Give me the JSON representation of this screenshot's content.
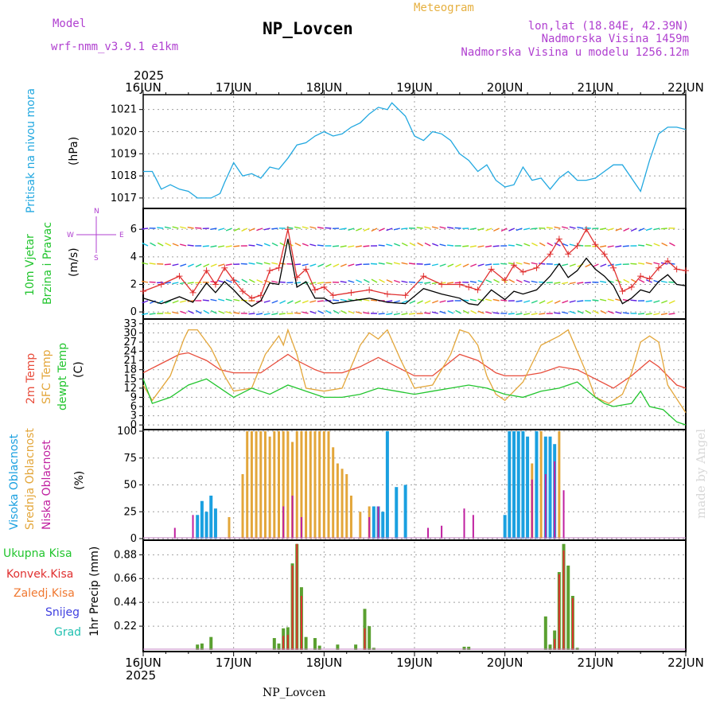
{
  "header": {
    "model_label": "Model",
    "model_name": "wrf-nmm_v3.9.1 e1km",
    "station": "NP_Lovcen",
    "meteogram": "Meteogram",
    "lonlat": "lon,lat (18.84E, 42.39N)",
    "altitude": "Nadmorska Visina 1459m",
    "model_altitude": "Nadmorska Visina u modelu 1256.12m",
    "footer_station": "NP_Lovcen",
    "credit": "made by Angel"
  },
  "colors": {
    "pressure": "#22a8e0",
    "wind_speed": "#000000",
    "wind_gust": "#e03030",
    "temp2m": "#e84d3c",
    "sfc": "#e3a63a",
    "dewpt": "#22c52e",
    "high_cloud": "#1aa0e0",
    "mid_cloud": "#e3a63a",
    "low_cloud": "#c020a0",
    "total_precip": "#5aa030",
    "conv_precip": "#e03030",
    "snow": "#4040e0",
    "graupel": "#20c0b0",
    "model_text": "#b040d0",
    "meteogram_text": "#e6b040"
  },
  "time_axis": {
    "year": "2025",
    "days": [
      "16JUN",
      "17JUN",
      "18JUN",
      "19JUN",
      "20JUN",
      "21JUN",
      "22JUN"
    ]
  },
  "chart_data": [
    {
      "type": "line",
      "panel": "pressure",
      "labels": [
        "Pritisak na nivou mora",
        "(hPa)"
      ],
      "yticks": [
        1017,
        1018,
        1019,
        1020,
        1021
      ],
      "ylim": [
        1016.6,
        1021.6
      ],
      "grid": true,
      "series": [
        {
          "x": [
            0,
            0.1,
            0.15,
            0.2,
            0.3,
            0.4,
            0.5,
            0.6,
            0.75,
            0.85,
            0.9,
            1.0,
            1.1,
            1.2,
            1.3,
            1.4,
            1.5,
            1.6,
            1.7,
            1.8,
            1.9,
            2.0,
            2.1,
            2.2,
            2.3,
            2.4,
            2.5,
            2.6,
            2.7,
            2.75,
            2.8,
            2.9,
            3.0,
            3.1,
            3.2,
            3.3,
            3.4,
            3.5,
            3.6,
            3.7,
            3.8,
            3.9,
            4.0,
            4.1,
            4.2,
            4.3,
            4.4,
            4.5,
            4.6,
            4.7,
            4.8,
            4.9,
            5.0,
            5.1,
            5.2,
            5.3,
            5.4,
            5.5,
            5.6,
            5.7,
            5.8,
            5.9,
            6.0
          ],
          "y": [
            1018.2,
            1018.2,
            1017.8,
            1017.4,
            1017.6,
            1017.4,
            1017.3,
            1017.0,
            1017.0,
            1017.2,
            1017.7,
            1018.6,
            1018.0,
            1018.1,
            1017.9,
            1018.4,
            1018.3,
            1018.8,
            1019.4,
            1019.5,
            1019.8,
            1020.0,
            1019.8,
            1019.9,
            1020.2,
            1020.4,
            1020.8,
            1021.1,
            1021.0,
            1021.3,
            1021.1,
            1020.7,
            1019.8,
            1019.6,
            1020.0,
            1019.9,
            1019.6,
            1019.0,
            1018.7,
            1018.2,
            1018.5,
            1017.8,
            1017.5,
            1017.6,
            1018.4,
            1017.8,
            1017.9,
            1017.4,
            1017.9,
            1018.2,
            1017.8,
            1017.8,
            1017.9,
            1018.2,
            1018.5,
            1018.5,
            1017.9,
            1017.3,
            1018.7,
            1019.9,
            1020.2,
            1020.2,
            1020.1
          ]
        }
      ]
    },
    {
      "type": "line",
      "panel": "wind",
      "labels": [
        "10m Vjetar",
        "Brzina i Pravac",
        "(m/s)"
      ],
      "compass": [
        "N",
        "W",
        "E",
        "S"
      ],
      "yticks": [
        0,
        2,
        4,
        6
      ],
      "ylim": [
        -0.4,
        7.4
      ],
      "grid": true,
      "series": [
        {
          "name": "speed",
          "x": [
            0,
            0.2,
            0.4,
            0.55,
            0.7,
            0.8,
            0.9,
            1.0,
            1.1,
            1.2,
            1.3,
            1.4,
            1.5,
            1.6,
            1.7,
            1.8,
            1.9,
            2.0,
            2.1,
            2.3,
            2.5,
            2.7,
            2.9,
            3.1,
            3.3,
            3.5,
            3.6,
            3.7,
            3.85,
            4.0,
            4.1,
            4.2,
            4.35,
            4.5,
            4.6,
            4.7,
            4.8,
            4.9,
            5.0,
            5.1,
            5.2,
            5.3,
            5.4,
            5.5,
            5.6,
            5.7,
            5.8,
            5.9,
            6.0
          ],
          "y": [
            1.0,
            0.6,
            1.1,
            0.7,
            2.1,
            1.4,
            2.2,
            1.6,
            0.9,
            0.4,
            0.8,
            2.1,
            2.0,
            5.3,
            1.8,
            2.2,
            1.0,
            1.0,
            0.6,
            0.8,
            1.0,
            0.7,
            0.6,
            1.7,
            1.3,
            1.0,
            0.6,
            0.5,
            1.6,
            0.9,
            1.5,
            1.3,
            1.6,
            2.6,
            3.5,
            2.5,
            3.0,
            3.9,
            3.1,
            2.6,
            1.9,
            0.6,
            1.0,
            1.6,
            1.4,
            2.2,
            2.7,
            2.0,
            1.9
          ]
        },
        {
          "name": "gust",
          "x": [
            0,
            0.2,
            0.4,
            0.55,
            0.7,
            0.8,
            0.9,
            1.0,
            1.1,
            1.2,
            1.3,
            1.4,
            1.5,
            1.6,
            1.7,
            1.8,
            1.9,
            2.0,
            2.1,
            2.3,
            2.5,
            2.7,
            2.9,
            3.1,
            3.3,
            3.5,
            3.6,
            3.7,
            3.85,
            4.0,
            4.1,
            4.2,
            4.35,
            4.5,
            4.6,
            4.7,
            4.8,
            4.9,
            5.0,
            5.1,
            5.2,
            5.3,
            5.4,
            5.5,
            5.6,
            5.7,
            5.8,
            5.9,
            6.0
          ],
          "y": [
            1.5,
            2.0,
            2.6,
            1.4,
            3.0,
            2.0,
            3.2,
            2.3,
            1.5,
            1.0,
            1.2,
            3.0,
            3.2,
            6.0,
            2.5,
            3.1,
            1.6,
            1.8,
            1.2,
            1.4,
            1.6,
            1.3,
            1.2,
            2.6,
            2.0,
            2.0,
            1.8,
            1.6,
            3.1,
            2.3,
            3.4,
            2.9,
            3.2,
            4.2,
            5.3,
            4.2,
            4.8,
            6.0,
            4.9,
            4.2,
            3.2,
            1.5,
            1.8,
            2.6,
            2.4,
            3.2,
            3.7,
            3.1,
            3.0
          ]
        }
      ]
    },
    {
      "type": "line",
      "panel": "temperature",
      "labels": [
        "2m Temp",
        "SFC Temp",
        "dewpt Temp",
        "(C)"
      ],
      "yticks": [
        0,
        3,
        6,
        9,
        12,
        15,
        18,
        21,
        24,
        27,
        30,
        33
      ],
      "ylim": [
        -1,
        34
      ],
      "grid": true,
      "series": [
        {
          "name": "2m",
          "x": [
            0,
            0.2,
            0.4,
            0.5,
            0.7,
            0.85,
            1.0,
            1.15,
            1.3,
            1.5,
            1.6,
            1.7,
            1.9,
            2.0,
            2.2,
            2.4,
            2.6,
            2.8,
            3.0,
            3.2,
            3.5,
            3.7,
            3.9,
            4.0,
            4.2,
            4.4,
            4.6,
            4.8,
            5.0,
            5.2,
            5.4,
            5.6,
            5.7,
            5.8,
            5.9,
            6.0
          ],
          "y": [
            17,
            20,
            23,
            23.5,
            21,
            18,
            17,
            17,
            17,
            21,
            23,
            21,
            18,
            17,
            17,
            19,
            22,
            19,
            16,
            16,
            23,
            21,
            17,
            16,
            16,
            17,
            19,
            18,
            15,
            12,
            16,
            21,
            19,
            16,
            13,
            12
          ]
        },
        {
          "name": "sfc",
          "x": [
            0,
            0.1,
            0.3,
            0.45,
            0.5,
            0.6,
            0.75,
            0.9,
            1.0,
            1.2,
            1.35,
            1.5,
            1.55,
            1.6,
            1.7,
            1.8,
            2.0,
            2.2,
            2.4,
            2.5,
            2.6,
            2.7,
            2.85,
            3.0,
            3.2,
            3.4,
            3.5,
            3.6,
            3.7,
            3.8,
            3.9,
            4.0,
            4.2,
            4.4,
            4.6,
            4.7,
            4.9,
            5.0,
            5.15,
            5.3,
            5.4,
            5.5,
            5.6,
            5.7,
            5.8,
            6.0
          ],
          "y": [
            13,
            8,
            16,
            28,
            31,
            31,
            25,
            16,
            11,
            12,
            23,
            29,
            26,
            31,
            23,
            12,
            11,
            12,
            26,
            30,
            28,
            31,
            21,
            12,
            13,
            23,
            31,
            30,
            26,
            16,
            10,
            8,
            14,
            26,
            29,
            31,
            17,
            9,
            7,
            10,
            17,
            27,
            29,
            27,
            13,
            4
          ]
        },
        {
          "name": "dewpt",
          "x": [
            0,
            0.1,
            0.3,
            0.5,
            0.7,
            0.9,
            1.0,
            1.2,
            1.4,
            1.6,
            1.8,
            2.0,
            2.2,
            2.4,
            2.6,
            2.8,
            3.0,
            3.2,
            3.4,
            3.6,
            3.8,
            4.0,
            4.2,
            4.4,
            4.6,
            4.8,
            5.0,
            5.1,
            5.2,
            5.4,
            5.5,
            5.6,
            5.75,
            5.9,
            6.0
          ],
          "y": [
            15,
            7,
            9,
            13,
            15,
            11,
            9,
            12,
            10,
            13,
            11,
            9,
            9,
            10,
            12,
            11,
            10,
            11,
            12,
            13,
            12,
            10,
            9,
            11,
            12,
            14,
            9,
            7,
            6,
            7,
            11,
            6,
            5,
            1,
            0
          ]
        }
      ]
    },
    {
      "type": "bar",
      "panel": "cloud",
      "labels": [
        "Visoka Oblacnost",
        "Srednja Oblacnost",
        "Niska Oblacnost",
        "(%)"
      ],
      "yticks": [
        0,
        25,
        50,
        75,
        100
      ],
      "ylim": [
        0,
        100
      ],
      "grid": true,
      "series": [
        {
          "name": "visoka",
          "x": [
            0.6,
            0.65,
            0.7,
            0.75,
            0.8,
            2.55,
            2.6,
            2.65,
            2.7,
            2.8,
            2.9,
            4.0,
            4.05,
            4.1,
            4.15,
            4.2,
            4.25,
            4.35,
            4.45,
            4.5,
            4.55
          ],
          "y": [
            22,
            35,
            25,
            40,
            28,
            30,
            30,
            25,
            100,
            48,
            50,
            22,
            100,
            100,
            100,
            100,
            95,
            100,
            95,
            95,
            88
          ]
        },
        {
          "name": "srednja",
          "x": [
            0.95,
            1.1,
            1.15,
            1.2,
            1.25,
            1.3,
            1.35,
            1.4,
            1.45,
            1.5,
            1.55,
            1.6,
            1.65,
            1.7,
            1.75,
            1.8,
            1.85,
            1.9,
            1.95,
            2.0,
            2.05,
            2.1,
            2.15,
            2.2,
            2.25,
            2.3,
            2.4,
            2.5,
            4.1,
            4.15,
            4.2,
            4.3,
            4.4,
            4.5,
            4.6
          ],
          "y": [
            20,
            60,
            100,
            100,
            100,
            100,
            100,
            95,
            100,
            100,
            100,
            100,
            90,
            100,
            100,
            100,
            100,
            100,
            100,
            100,
            100,
            85,
            70,
            65,
            60,
            40,
            25,
            30,
            15,
            20,
            18,
            70,
            100,
            80,
            100
          ]
        },
        {
          "name": "niska",
          "x": [
            0.35,
            0.55,
            1.55,
            1.65,
            1.75,
            2.5,
            2.6,
            3.15,
            3.3,
            3.55,
            3.65,
            4.3,
            4.45,
            4.55,
            4.65
          ],
          "y": [
            10,
            22,
            30,
            40,
            20,
            20,
            30,
            10,
            12,
            28,
            22,
            55,
            60,
            72,
            45
          ]
        }
      ]
    },
    {
      "type": "bar",
      "panel": "precip",
      "labels": [
        "Ukupna Kisa",
        "Konvek.Kisa",
        "Zaledj.Kisa",
        "Snijeg",
        "Grad",
        "1hr Precip (mm)"
      ],
      "yticks": [
        0.22,
        0.44,
        0.66,
        0.88
      ],
      "ylim": [
        0,
        1.0
      ],
      "grid": true,
      "series": [
        {
          "name": "ukupna",
          "x": [
            0.6,
            0.65,
            0.75,
            1.45,
            1.5,
            1.55,
            1.6,
            1.65,
            1.7,
            1.75,
            1.8,
            1.9,
            1.95,
            2.15,
            2.35,
            2.45,
            2.5,
            2.55,
            3.55,
            3.6,
            4.45,
            4.5,
            4.55,
            4.6,
            4.65,
            4.7,
            4.75,
            4.8
          ],
          "y": [
            0.05,
            0.06,
            0.12,
            0.11,
            0.06,
            0.2,
            0.21,
            0.8,
            0.98,
            0.58,
            0.12,
            0.11,
            0.04,
            0.05,
            0.05,
            0.38,
            0.22,
            0.02,
            0.03,
            0.03,
            0.31,
            0.05,
            0.18,
            0.72,
            0.98,
            0.78,
            0.5,
            0.02
          ]
        },
        {
          "name": "konvek",
          "x": [
            1.55,
            1.6,
            1.65,
            1.7,
            1.75,
            2.45,
            4.55,
            4.6,
            4.65,
            4.75
          ],
          "y": [
            0.13,
            0.14,
            0.78,
            0.98,
            0.5,
            0.2,
            0.1,
            0.7,
            0.92,
            0.48
          ]
        }
      ]
    }
  ]
}
